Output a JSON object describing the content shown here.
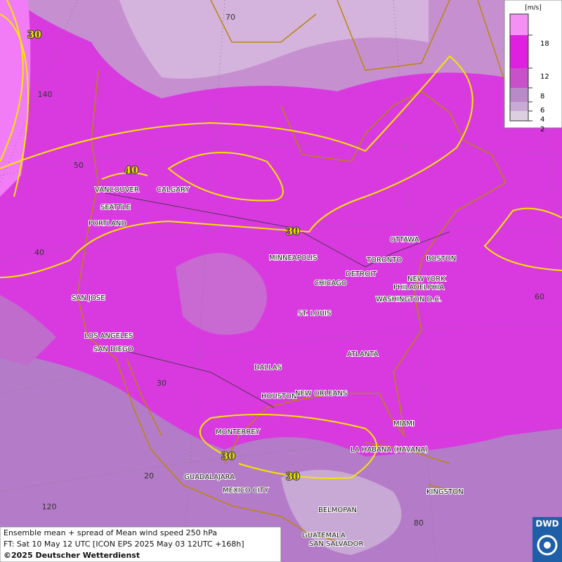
{
  "legend": {
    "unit": "[m/s]",
    "levels": [
      18,
      12,
      8,
      6,
      4,
      2
    ]
  },
  "cities": [
    "VANCOUVER",
    "CALGARY",
    "SEATTLE",
    "PORTLAND",
    "SAN JOSE",
    "LOS ANGELES",
    "SAN DIEGO",
    "MINNEAPOLIS",
    "TORONTO",
    "OTTAWA",
    "BOSTON",
    "DETROIT",
    "NEW YORK",
    "PHILADELPHIA",
    "CHICAGO",
    "WASHINGTON D.C.",
    "ST. LOUIS",
    "ATLANTA",
    "DALLAS",
    "HOUSTON",
    "NEW ORLEANS",
    "MIAMI",
    "MONTERREY",
    "LA HABANA (HAVANA)",
    "GUADALAJARA",
    "MEXICO CITY",
    "KINGSTON",
    "BELMOPAN",
    "GUATEMALA",
    "SAN SALVADOR"
  ],
  "contour_labels": [
    30,
    40,
    30,
    30,
    30
  ],
  "graticule_labels": [
    70,
    140,
    50,
    40,
    60,
    30,
    20,
    120,
    80
  ],
  "caption": [
    "Ensemble mean + spread of Mean wind speed 250 hPa",
    "FT: Sat 10 May 12 UTC [ICON EPS 2025 May 03 12UTC +168h]",
    "©2025 Deutscher Wetterdienst"
  ],
  "logo": "DWD"
}
